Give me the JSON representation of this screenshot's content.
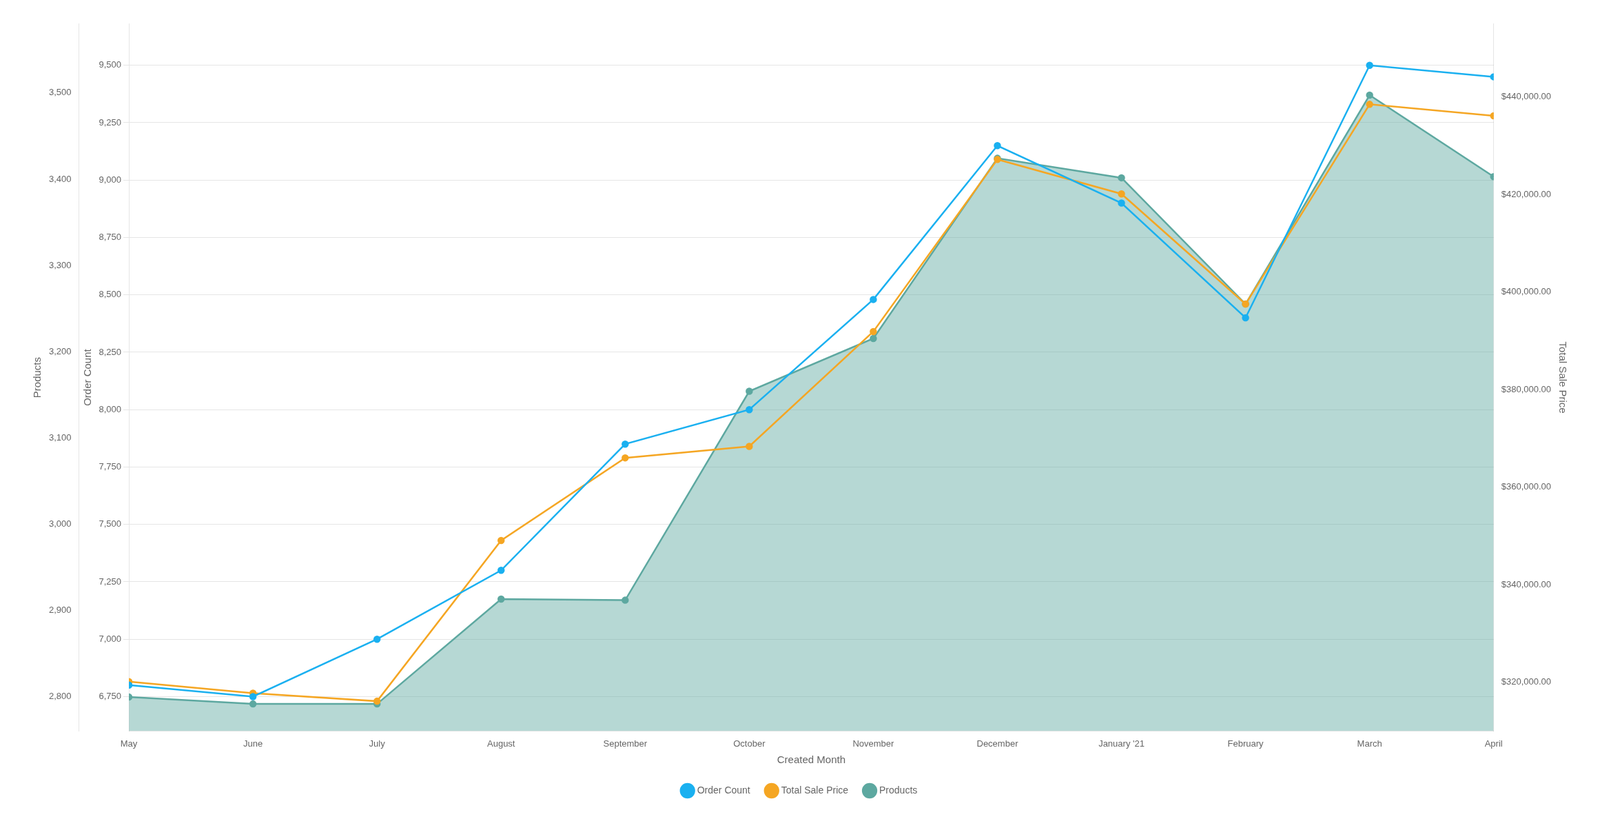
{
  "chart_data": {
    "type": "line",
    "x_label": "Created Month",
    "y_label": "Order Count",
    "y2_label": "Total Sale Price",
    "y3_label": "Products",
    "categories": [
      "May",
      "June",
      "July",
      "August",
      "September",
      "October",
      "November",
      "December",
      "January '21",
      "February",
      "March",
      "April"
    ],
    "series": [
      {
        "name": "Order Count",
        "color": "#1ab0f0",
        "marker": "circle",
        "values": [
          6800,
          6750,
          7000,
          7300,
          7850,
          8000,
          8480,
          9150,
          8900,
          8400,
          9500,
          9450
        ]
      },
      {
        "name": "Total Sale Price",
        "color": "#f5a623",
        "marker": "circle",
        "values": [
          6815,
          6765,
          6730,
          7430,
          7790,
          7840,
          8340,
          9090,
          8940,
          8460,
          9330,
          9280
        ]
      },
      {
        "name": "Products",
        "color": "#5da8a0",
        "marker": "circle",
        "type": "area",
        "values": [
          6748,
          6718,
          6718,
          7175,
          7170,
          8080,
          8310,
          9095,
          9010,
          8460,
          9370,
          9015
        ]
      }
    ],
    "ylim": [
      6600,
      9680
    ],
    "yticks": [
      {
        "value": 6750,
        "label": "6,750"
      },
      {
        "value": 7000,
        "label": "7,000"
      },
      {
        "value": 7250,
        "label": "7,250"
      },
      {
        "value": 7500,
        "label": "7,500"
      },
      {
        "value": 7750,
        "label": "7,750"
      },
      {
        "value": 8000,
        "label": "8,000"
      },
      {
        "value": 8250,
        "label": "8,250"
      },
      {
        "value": 8500,
        "label": "8,500"
      },
      {
        "value": 8750,
        "label": "8,750"
      },
      {
        "value": 9000,
        "label": "9,000"
      },
      {
        "value": 9250,
        "label": "9,250"
      },
      {
        "value": 9500,
        "label": "9,500"
      }
    ],
    "y2lim": [
      310000,
      455000
    ],
    "y2ticks": [
      {
        "value": 320000,
        "label": "$320,000.00"
      },
      {
        "value": 340000,
        "label": "$340,000.00"
      },
      {
        "value": 360000,
        "label": "$360,000.00"
      },
      {
        "value": 380000,
        "label": "$380,000.00"
      },
      {
        "value": 400000,
        "label": "$400,000.00"
      },
      {
        "value": 420000,
        "label": "$420,000.00"
      },
      {
        "value": 440000,
        "label": "$440,000.00"
      }
    ],
    "y3lim": [
      2760,
      3580
    ],
    "y3ticks": [
      {
        "value": 2800,
        "label": "2,800"
      },
      {
        "value": 2900,
        "label": "2,900"
      },
      {
        "value": 3000,
        "label": "3,000"
      },
      {
        "value": 3100,
        "label": "3,100"
      },
      {
        "value": 3200,
        "label": "3,200"
      },
      {
        "value": 3300,
        "label": "3,300"
      },
      {
        "value": 3400,
        "label": "3,400"
      },
      {
        "value": 3500,
        "label": "3,500"
      }
    ],
    "grid": true,
    "legend": "bottom"
  }
}
